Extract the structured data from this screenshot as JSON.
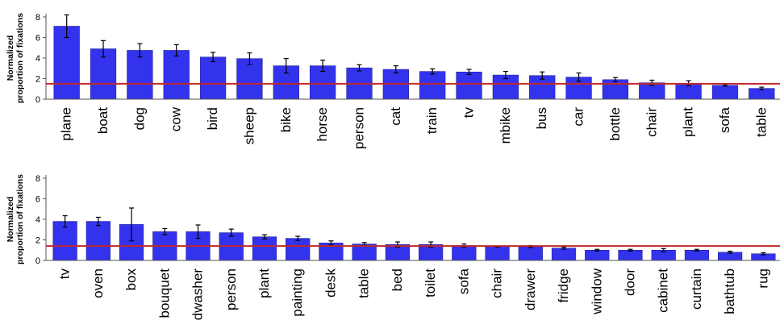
{
  "colors": {
    "bar": "#3333ee",
    "bar_stroke": "#1a1a8a",
    "ref_line": "#c0282a",
    "axis": "#555555",
    "error": "#000000"
  },
  "chart_data": [
    {
      "type": "bar",
      "ylabel": "Normalized proportion of fixations",
      "ylabel_lines": [
        "Normalized",
        "proportion of fixations"
      ],
      "ylim": [
        0,
        8
      ],
      "yticks": [
        0,
        2,
        4,
        6,
        8
      ],
      "reference_line": 1.5,
      "grid": false,
      "categories": [
        "plane",
        "boat",
        "dog",
        "cow",
        "bird",
        "sheep",
        "bike",
        "horse",
        "person",
        "cat",
        "train",
        "tv",
        "mbike",
        "bus",
        "car",
        "bottle",
        "chair",
        "plant",
        "sofa",
        "table"
      ],
      "values": [
        7.1,
        4.9,
        4.75,
        4.75,
        4.1,
        3.95,
        3.25,
        3.25,
        3.05,
        2.9,
        2.7,
        2.65,
        2.35,
        2.3,
        2.15,
        1.9,
        1.6,
        1.55,
        1.35,
        1.05
      ],
      "errors": [
        1.1,
        0.8,
        0.65,
        0.55,
        0.45,
        0.55,
        0.7,
        0.55,
        0.3,
        0.35,
        0.25,
        0.25,
        0.35,
        0.35,
        0.4,
        0.2,
        0.25,
        0.25,
        0.08,
        0.12
      ]
    },
    {
      "type": "bar",
      "ylabel": "Normalized proportion of fixations",
      "ylabel_lines": [
        "Normalized",
        "proportion of fixations"
      ],
      "ylim": [
        0,
        8
      ],
      "yticks": [
        0,
        2,
        4,
        6,
        8
      ],
      "reference_line": 1.4,
      "grid": false,
      "categories": [
        "tv",
        "oven",
        "box",
        "bouquet",
        "dwasher",
        "person",
        "plant",
        "painting",
        "desk",
        "table",
        "bed",
        "toilet",
        "sofa",
        "chair",
        "drawer",
        "fridge",
        "window",
        "door",
        "cabinet",
        "curtain",
        "bathtub",
        "rug"
      ],
      "values": [
        3.8,
        3.8,
        3.5,
        2.8,
        2.8,
        2.7,
        2.3,
        2.15,
        1.7,
        1.6,
        1.55,
        1.55,
        1.45,
        1.35,
        1.35,
        1.2,
        1.0,
        1.0,
        1.0,
        1.0,
        0.8,
        0.65
      ],
      "errors": [
        0.55,
        0.4,
        1.6,
        0.3,
        0.65,
        0.35,
        0.2,
        0.2,
        0.2,
        0.15,
        0.25,
        0.25,
        0.15,
        0.05,
        0.1,
        0.1,
        0.08,
        0.08,
        0.15,
        0.08,
        0.1,
        0.1
      ]
    }
  ]
}
